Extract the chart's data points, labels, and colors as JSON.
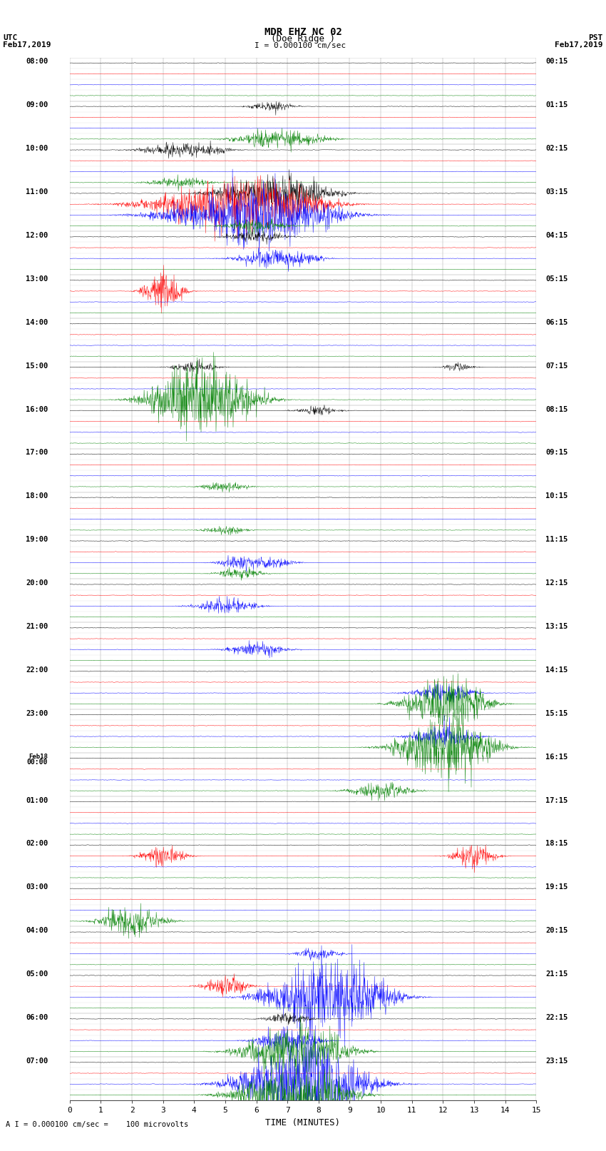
{
  "title_line1": "MDR EHZ NC 02",
  "title_line2": "(Doe Ridge )",
  "scale_label": "I = 0.000100 cm/sec",
  "bottom_label": "A I = 0.000100 cm/sec =    100 microvolts",
  "xlabel": "TIME (MINUTES)",
  "left_label_line1": "UTC",
  "left_label_line2": "Feb17,2019",
  "right_label_line1": "PST",
  "right_label_line2": "Feb17,2019",
  "utc_times": [
    "08:00",
    "09:00",
    "10:00",
    "11:00",
    "12:00",
    "13:00",
    "14:00",
    "15:00",
    "16:00",
    "17:00",
    "18:00",
    "19:00",
    "20:00",
    "21:00",
    "22:00",
    "23:00",
    "Feb18\n00:00",
    "01:00",
    "02:00",
    "03:00",
    "04:00",
    "05:00",
    "06:00",
    "07:00"
  ],
  "pst_times": [
    "00:15",
    "01:15",
    "02:15",
    "03:15",
    "04:15",
    "05:15",
    "06:15",
    "07:15",
    "08:15",
    "09:15",
    "10:15",
    "11:15",
    "12:15",
    "13:15",
    "14:15",
    "15:15",
    "16:15",
    "17:15",
    "18:15",
    "19:15",
    "20:15",
    "21:15",
    "22:15",
    "23:15"
  ],
  "num_groups": 24,
  "traces_per_group": 4,
  "trace_colors": [
    "black",
    "red",
    "blue",
    "green"
  ],
  "minutes": 15,
  "background_color": "white",
  "noise_amplitude": 0.045,
  "seed": 42,
  "figsize": [
    8.5,
    16.13
  ],
  "dpi": 100
}
